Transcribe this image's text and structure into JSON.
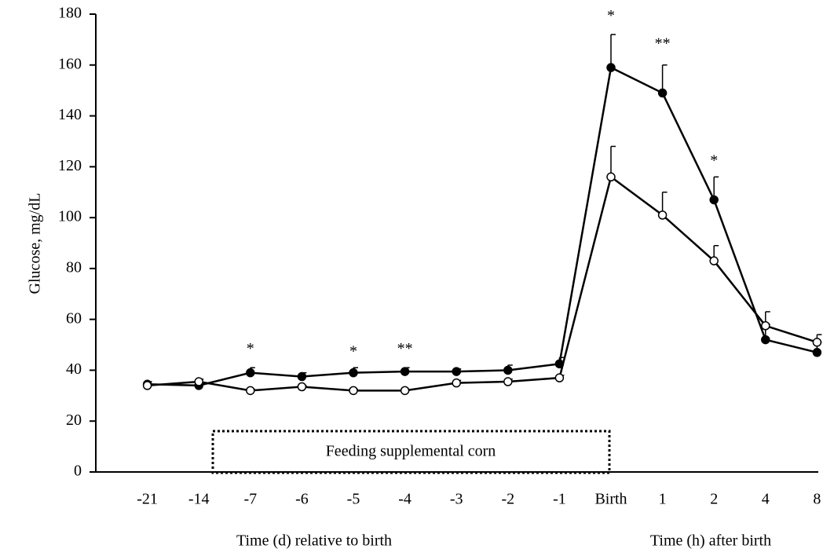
{
  "chart_data": {
    "type": "line",
    "y_label": "Glucose,  mg/dL",
    "x_labels": [
      "Time (d) relative to birth",
      "Time (h) after birth"
    ],
    "box_text": "Feeding supplemental corn",
    "categories": [
      "-21",
      "-14",
      "-7",
      "-6",
      "-5",
      "-4",
      "-3",
      "-2",
      "-1",
      "Birth",
      "1",
      "2",
      "4",
      "8"
    ],
    "series": [
      {
        "color": "#000000",
        "values": [
          34.5,
          34,
          39,
          37.5,
          39,
          39.5,
          39.5,
          40,
          42.5,
          159,
          149,
          107,
          52,
          47
        ],
        "errors": [
          1,
          1,
          2,
          1.5,
          2,
          1.5,
          1,
          2,
          2.5,
          13,
          11,
          9,
          6,
          4
        ]
      },
      {
        "color": "#ffffff",
        "values": [
          34,
          35.5,
          32,
          33.5,
          32,
          32,
          35,
          35.5,
          37,
          116,
          101,
          83,
          57.5,
          51
        ],
        "errors": [
          0.5,
          1,
          0.5,
          0.5,
          0.5,
          0.5,
          1,
          1,
          1,
          12,
          9,
          6,
          5.5,
          3
        ]
      }
    ],
    "annotations": [
      {
        "text": "*",
        "category": 2,
        "y": 48
      },
      {
        "text": "*",
        "category": 4,
        "y": 47
      },
      {
        "text": "**",
        "category": 5,
        "y": 48
      },
      {
        "text": "*",
        "category": 9,
        "y": 179
      },
      {
        "text": "**",
        "category": 10,
        "y": 168
      },
      {
        "text": "*",
        "category": 11,
        "y": 122
      }
    ],
    "ylim": [
      0,
      180
    ],
    "yticks": [
      0,
      20,
      40,
      60,
      80,
      100,
      120,
      140,
      160,
      180
    ]
  }
}
